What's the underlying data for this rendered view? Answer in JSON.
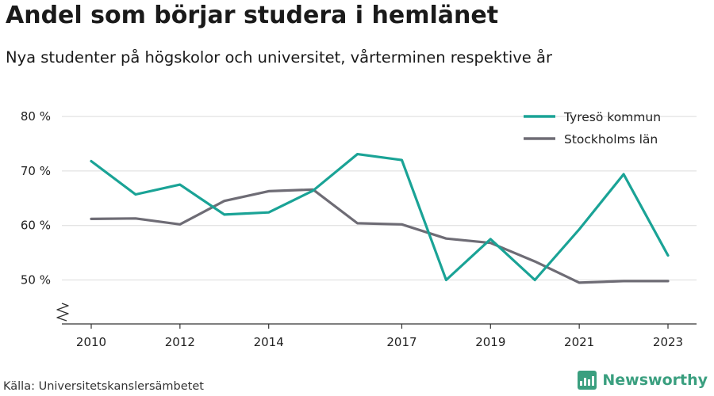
{
  "header": {
    "title": "Andel som börjar studera i hemlänet",
    "subtitle": "Nya studenter på högskolor och universitet, vårterminen respektive år"
  },
  "footer": {
    "source": "Källa: Universitetskanslersämbetet",
    "brand": "Newsworthy",
    "brand_icon": "bar-chart-logo-icon",
    "brand_color": "#3a9f7f"
  },
  "chart_data": {
    "type": "line",
    "title": "Andel som börjar studera i hemlänet",
    "subtitle": "Nya studenter på högskolor och universitet, vårterminen respektive år",
    "xlabel": "",
    "ylabel": "",
    "x": [
      2010,
      2011,
      2012,
      2013,
      2014,
      2015,
      2016,
      2017,
      2018,
      2019,
      2020,
      2021,
      2022,
      2023
    ],
    "x_ticks": [
      2010,
      2012,
      2014,
      2017,
      2019,
      2021,
      2023
    ],
    "y_ticks": [
      50,
      60,
      70,
      80
    ],
    "y_tick_labels": [
      "50 %",
      "60 %",
      "70 %",
      "80 %"
    ],
    "ylim": [
      42,
      80
    ],
    "y_axis_break": true,
    "grid": "horizontal",
    "legend_position": "top-right",
    "series": [
      {
        "name": "Tyresö kommun",
        "color": "#1aa396",
        "values": [
          71.8,
          65.7,
          67.5,
          62.0,
          62.4,
          66.4,
          73.1,
          72.0,
          50.0,
          57.5,
          50.0,
          59.3,
          69.4,
          54.5
        ]
      },
      {
        "name": "Stockholms län",
        "color": "#6e6c75",
        "values": [
          61.2,
          61.3,
          60.2,
          64.5,
          66.3,
          66.6,
          60.4,
          60.2,
          57.6,
          56.8,
          53.4,
          49.5,
          49.8,
          49.8
        ]
      }
    ]
  }
}
